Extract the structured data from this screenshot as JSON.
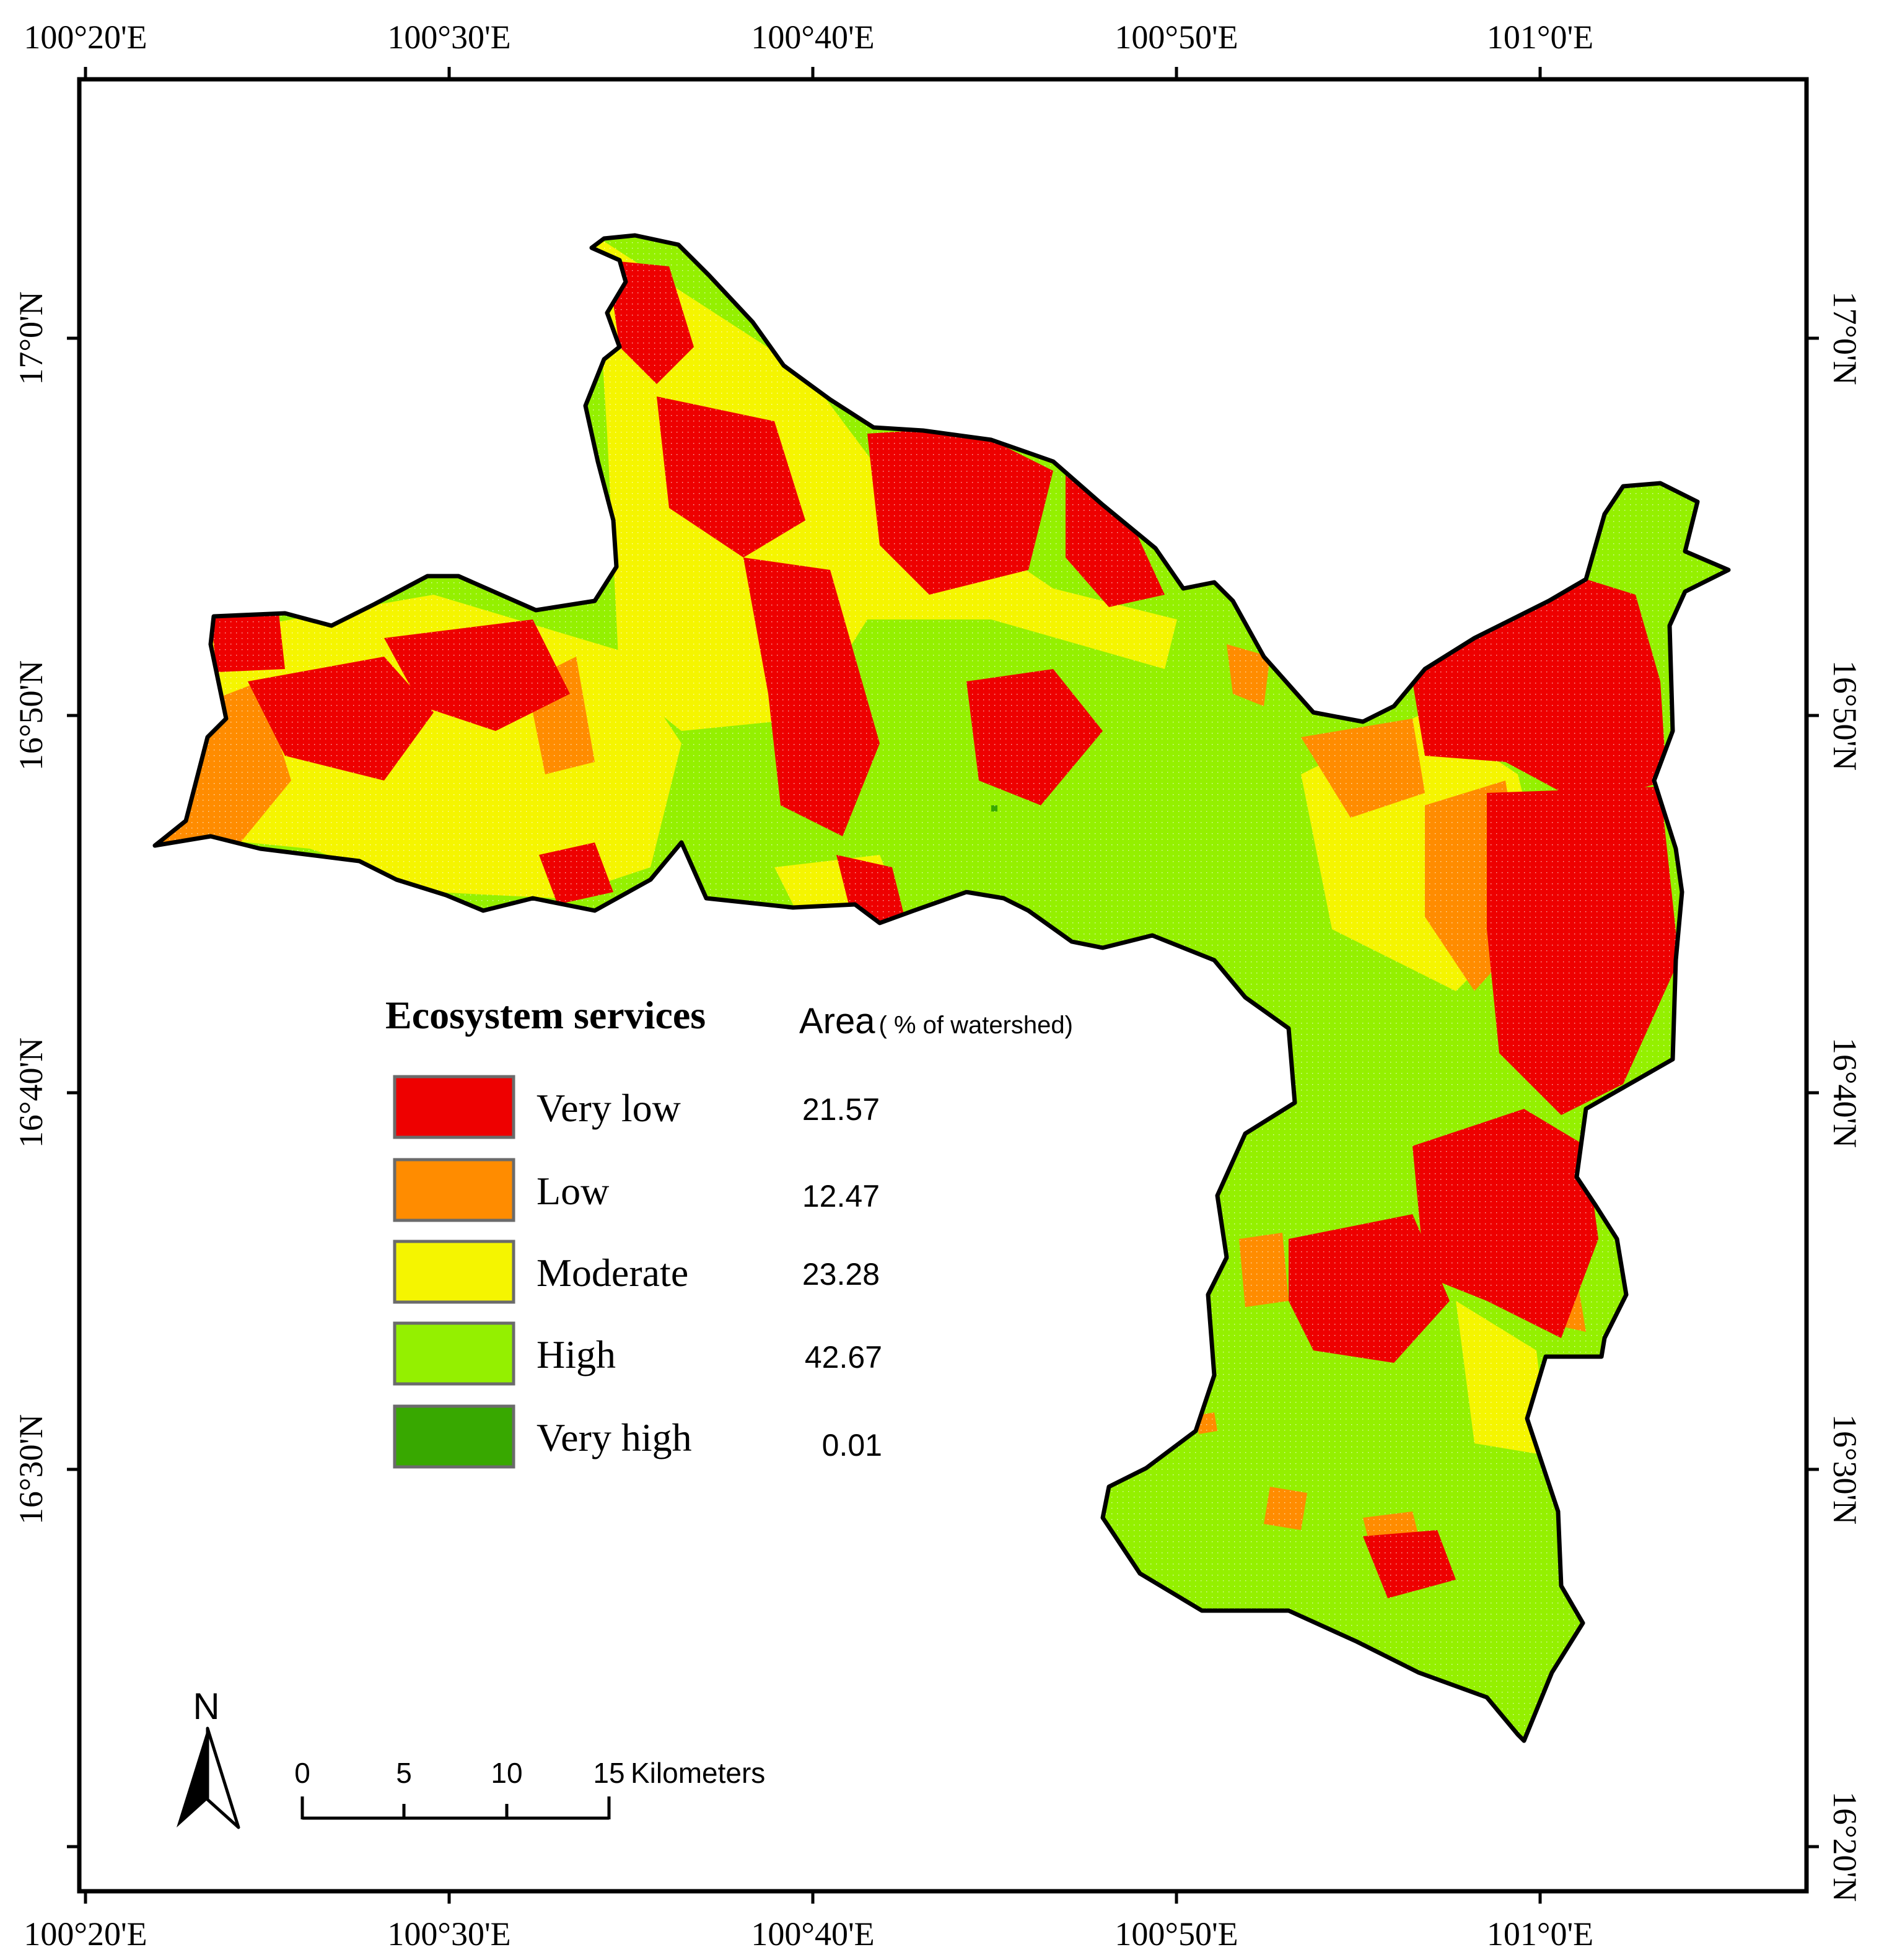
{
  "map": {
    "graticule": {
      "top_longitudes": [
        "100°20'E",
        "100°30'E",
        "100°40'E",
        "100°50'E",
        "101°0'E"
      ],
      "bottom_longitudes": [
        "100°20'E",
        "100°30'E",
        "100°40'E",
        "100°50'E",
        "101°0'E"
      ],
      "left_latitudes": [
        "17°0'N",
        "16°50'N",
        "16°40'N",
        "16°30'N"
      ],
      "right_latitudes": [
        "17°0'N",
        "16°50'N",
        "16°40'N",
        "16°30'N",
        "16°20'N"
      ]
    },
    "legend": {
      "title": "Ecosystem services",
      "area_label": "Area",
      "area_unit": "( % of watershed)",
      "classes": [
        {
          "label": "Very low",
          "value": "21.57",
          "color": "#ee0000"
        },
        {
          "label": "Low",
          "value": "12.47",
          "color": "#ff8c00"
        },
        {
          "label": "Moderate",
          "value": "23.28",
          "color": "#f5f500"
        },
        {
          "label": "High",
          "value": "42.67",
          "color": "#94f000"
        },
        {
          "label": "Very high",
          "value": "0.01",
          "color": "#38a800"
        }
      ]
    },
    "north_arrow": {
      "label": "N"
    },
    "scale_bar": {
      "ticks": [
        "0",
        "5",
        "10",
        "15"
      ],
      "unit": "Kilometers"
    }
  }
}
